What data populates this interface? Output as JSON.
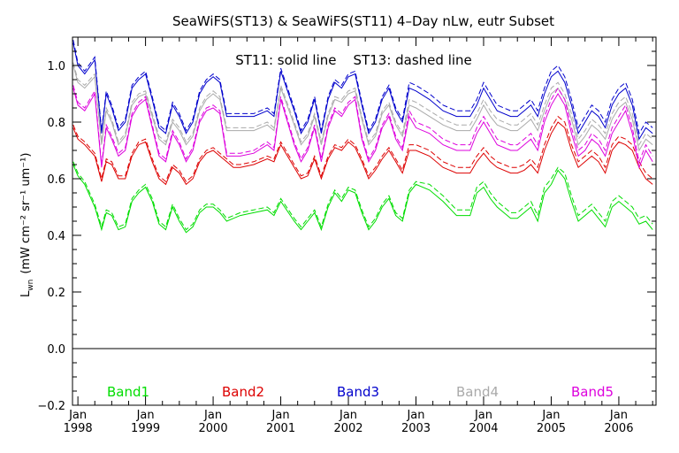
{
  "chart_data": {
    "type": "line",
    "title": "SeaWiFS(ST13) & SeaWiFS(ST11) 4–Day nLw, eutr Subset",
    "annotation": "ST11: solid line    ST13: dashed line",
    "ylabel_main": "L",
    "ylabel_sub": "wn",
    "ylabel_units": "(mW cm⁻² sr⁻¹ um⁻¹)",
    "ylim": [
      -0.2,
      1.1
    ],
    "xlim": [
      1997.92,
      2006.55
    ],
    "y_ticks": [
      {
        "v": -0.2,
        "label": "−0.2"
      },
      {
        "v": 0.0,
        "label": "0.0"
      },
      {
        "v": 0.2,
        "label": "0.2"
      },
      {
        "v": 0.4,
        "label": "0.4"
      },
      {
        "v": 0.6,
        "label": "0.6"
      },
      {
        "v": 0.8,
        "label": "0.8"
      },
      {
        "v": 1.0,
        "label": "1.0"
      }
    ],
    "x_ticks": [
      {
        "v": 1998,
        "month": "Jan",
        "year": "1998"
      },
      {
        "v": 1999,
        "month": "Jan",
        "year": "1999"
      },
      {
        "v": 2000,
        "month": "Jan",
        "year": "2000"
      },
      {
        "v": 2001,
        "month": "Jan",
        "year": "2001"
      },
      {
        "v": 2002,
        "month": "Jan",
        "year": "2002"
      },
      {
        "v": 2003,
        "month": "Jan",
        "year": "2003"
      },
      {
        "v": 2004,
        "month": "Jan",
        "year": "2004"
      },
      {
        "v": 2005,
        "month": "Jan",
        "year": "2005"
      },
      {
        "v": 2006,
        "month": "Jan",
        "year": "2006"
      }
    ],
    "zero_line": 0.0,
    "x": [
      1997.93,
      1998.0,
      1998.1,
      1998.25,
      1998.35,
      1998.42,
      1998.5,
      1998.6,
      1998.7,
      1998.8,
      1998.9,
      1999.0,
      1999.1,
      1999.2,
      1999.3,
      1999.4,
      1999.5,
      1999.6,
      1999.7,
      1999.8,
      1999.9,
      2000.0,
      2000.1,
      2000.2,
      2000.3,
      2000.4,
      2000.6,
      2000.8,
      2000.9,
      2001.0,
      2001.2,
      2001.3,
      2001.4,
      2001.5,
      2001.6,
      2001.7,
      2001.8,
      2001.9,
      2002.0,
      2002.1,
      2002.2,
      2002.3,
      2002.4,
      2002.5,
      2002.6,
      2002.7,
      2002.8,
      2002.9,
      2003.0,
      2003.2,
      2003.4,
      2003.6,
      2003.8,
      2003.9,
      2004.0,
      2004.1,
      2004.2,
      2004.4,
      2004.5,
      2004.6,
      2004.7,
      2004.8,
      2004.9,
      2005.0,
      2005.1,
      2005.2,
      2005.3,
      2005.4,
      2005.5,
      2005.6,
      2005.7,
      2005.8,
      2005.9,
      2006.0,
      2006.1,
      2006.2,
      2006.3,
      2006.4,
      2006.5
    ],
    "series": [
      {
        "name": "Band1",
        "color": "#00dd00",
        "values": [
          0.65,
          0.61,
          0.58,
          0.5,
          0.42,
          0.48,
          0.47,
          0.42,
          0.43,
          0.52,
          0.55,
          0.57,
          0.52,
          0.44,
          0.42,
          0.5,
          0.45,
          0.41,
          0.43,
          0.48,
          0.5,
          0.5,
          0.48,
          0.45,
          0.46,
          0.47,
          0.48,
          0.49,
          0.47,
          0.52,
          0.45,
          0.42,
          0.45,
          0.48,
          0.42,
          0.5,
          0.55,
          0.52,
          0.56,
          0.55,
          0.48,
          0.42,
          0.45,
          0.5,
          0.53,
          0.47,
          0.45,
          0.55,
          0.58,
          0.56,
          0.52,
          0.47,
          0.47,
          0.55,
          0.57,
          0.53,
          0.5,
          0.46,
          0.46,
          0.48,
          0.5,
          0.45,
          0.55,
          0.58,
          0.63,
          0.6,
          0.52,
          0.45,
          0.47,
          0.49,
          0.46,
          0.43,
          0.5,
          0.52,
          0.5,
          0.48,
          0.44,
          0.45,
          0.42
        ],
        "values_ST13": [
          0.66,
          0.62,
          0.59,
          0.51,
          0.43,
          0.49,
          0.48,
          0.43,
          0.44,
          0.53,
          0.56,
          0.58,
          0.53,
          0.45,
          0.43,
          0.51,
          0.46,
          0.42,
          0.44,
          0.49,
          0.51,
          0.51,
          0.49,
          0.46,
          0.47,
          0.48,
          0.49,
          0.5,
          0.48,
          0.53,
          0.46,
          0.43,
          0.46,
          0.49,
          0.43,
          0.51,
          0.56,
          0.53,
          0.57,
          0.56,
          0.49,
          0.43,
          0.46,
          0.51,
          0.54,
          0.48,
          0.46,
          0.56,
          0.59,
          0.58,
          0.54,
          0.49,
          0.49,
          0.57,
          0.59,
          0.55,
          0.52,
          0.48,
          0.48,
          0.5,
          0.52,
          0.47,
          0.57,
          0.6,
          0.64,
          0.62,
          0.54,
          0.47,
          0.49,
          0.51,
          0.48,
          0.45,
          0.52,
          0.54,
          0.52,
          0.5,
          0.46,
          0.47,
          0.44
        ]
      },
      {
        "name": "Band2",
        "color": "#dd0000",
        "values": [
          0.78,
          0.74,
          0.72,
          0.68,
          0.59,
          0.66,
          0.65,
          0.6,
          0.6,
          0.68,
          0.72,
          0.73,
          0.66,
          0.6,
          0.58,
          0.64,
          0.62,
          0.58,
          0.6,
          0.66,
          0.69,
          0.7,
          0.68,
          0.66,
          0.64,
          0.64,
          0.65,
          0.67,
          0.66,
          0.72,
          0.64,
          0.6,
          0.61,
          0.67,
          0.6,
          0.67,
          0.71,
          0.7,
          0.73,
          0.71,
          0.66,
          0.6,
          0.63,
          0.67,
          0.7,
          0.66,
          0.62,
          0.7,
          0.7,
          0.68,
          0.64,
          0.62,
          0.62,
          0.66,
          0.69,
          0.66,
          0.64,
          0.62,
          0.62,
          0.63,
          0.65,
          0.62,
          0.7,
          0.76,
          0.8,
          0.78,
          0.7,
          0.64,
          0.66,
          0.68,
          0.66,
          0.62,
          0.7,
          0.73,
          0.72,
          0.7,
          0.64,
          0.6,
          0.58
        ],
        "values_ST13": [
          0.79,
          0.75,
          0.73,
          0.69,
          0.6,
          0.67,
          0.66,
          0.61,
          0.61,
          0.69,
          0.73,
          0.74,
          0.67,
          0.61,
          0.59,
          0.65,
          0.63,
          0.59,
          0.61,
          0.67,
          0.7,
          0.71,
          0.69,
          0.67,
          0.65,
          0.65,
          0.66,
          0.68,
          0.67,
          0.73,
          0.65,
          0.61,
          0.62,
          0.68,
          0.61,
          0.68,
          0.72,
          0.71,
          0.74,
          0.72,
          0.67,
          0.61,
          0.64,
          0.68,
          0.71,
          0.67,
          0.63,
          0.72,
          0.72,
          0.7,
          0.66,
          0.64,
          0.64,
          0.68,
          0.71,
          0.68,
          0.66,
          0.64,
          0.64,
          0.65,
          0.67,
          0.64,
          0.72,
          0.78,
          0.82,
          0.8,
          0.72,
          0.66,
          0.68,
          0.7,
          0.68,
          0.64,
          0.72,
          0.75,
          0.74,
          0.72,
          0.66,
          0.62,
          0.6
        ]
      },
      {
        "name": "Band3",
        "color": "#0000cc",
        "values": [
          1.08,
          1.0,
          0.97,
          1.02,
          0.76,
          0.9,
          0.85,
          0.77,
          0.8,
          0.92,
          0.95,
          0.97,
          0.88,
          0.78,
          0.76,
          0.86,
          0.82,
          0.76,
          0.8,
          0.9,
          0.94,
          0.96,
          0.94,
          0.82,
          0.82,
          0.82,
          0.82,
          0.84,
          0.82,
          0.98,
          0.84,
          0.76,
          0.8,
          0.88,
          0.76,
          0.88,
          0.94,
          0.92,
          0.96,
          0.97,
          0.86,
          0.76,
          0.8,
          0.88,
          0.92,
          0.84,
          0.8,
          0.92,
          0.91,
          0.88,
          0.84,
          0.82,
          0.82,
          0.86,
          0.92,
          0.88,
          0.84,
          0.82,
          0.82,
          0.84,
          0.86,
          0.82,
          0.9,
          0.96,
          0.98,
          0.94,
          0.86,
          0.76,
          0.8,
          0.84,
          0.82,
          0.78,
          0.86,
          0.9,
          0.92,
          0.86,
          0.74,
          0.78,
          0.76
        ],
        "values_ST13": [
          1.09,
          1.01,
          0.98,
          1.03,
          0.77,
          0.91,
          0.86,
          0.78,
          0.81,
          0.93,
          0.96,
          0.98,
          0.89,
          0.79,
          0.77,
          0.87,
          0.83,
          0.77,
          0.81,
          0.91,
          0.95,
          0.97,
          0.95,
          0.83,
          0.83,
          0.83,
          0.83,
          0.85,
          0.83,
          0.99,
          0.85,
          0.77,
          0.81,
          0.89,
          0.77,
          0.89,
          0.95,
          0.93,
          0.97,
          0.98,
          0.87,
          0.77,
          0.81,
          0.89,
          0.93,
          0.85,
          0.81,
          0.94,
          0.93,
          0.9,
          0.86,
          0.84,
          0.84,
          0.88,
          0.94,
          0.9,
          0.86,
          0.84,
          0.84,
          0.86,
          0.88,
          0.84,
          0.92,
          0.98,
          1.0,
          0.96,
          0.88,
          0.78,
          0.82,
          0.86,
          0.84,
          0.8,
          0.88,
          0.92,
          0.94,
          0.88,
          0.76,
          0.8,
          0.78
        ]
      },
      {
        "name": "Band4",
        "color": "#aaaaaa",
        "values": [
          1.0,
          0.94,
          0.92,
          0.96,
          0.72,
          0.84,
          0.8,
          0.72,
          0.75,
          0.86,
          0.89,
          0.9,
          0.82,
          0.74,
          0.72,
          0.8,
          0.77,
          0.72,
          0.75,
          0.84,
          0.88,
          0.9,
          0.88,
          0.77,
          0.77,
          0.77,
          0.77,
          0.79,
          0.77,
          0.92,
          0.79,
          0.72,
          0.75,
          0.82,
          0.72,
          0.82,
          0.88,
          0.87,
          0.9,
          0.91,
          0.81,
          0.72,
          0.75,
          0.83,
          0.86,
          0.79,
          0.75,
          0.86,
          0.85,
          0.82,
          0.79,
          0.77,
          0.77,
          0.81,
          0.86,
          0.82,
          0.79,
          0.77,
          0.77,
          0.79,
          0.81,
          0.77,
          0.84,
          0.9,
          0.92,
          0.88,
          0.81,
          0.72,
          0.75,
          0.79,
          0.77,
          0.74,
          0.81,
          0.85,
          0.87,
          0.81,
          0.7,
          0.74,
          0.72
        ],
        "values_ST13": [
          1.01,
          0.95,
          0.93,
          0.97,
          0.73,
          0.85,
          0.81,
          0.73,
          0.76,
          0.87,
          0.9,
          0.91,
          0.83,
          0.75,
          0.73,
          0.81,
          0.78,
          0.73,
          0.76,
          0.85,
          0.89,
          0.91,
          0.89,
          0.78,
          0.78,
          0.78,
          0.78,
          0.8,
          0.78,
          0.93,
          0.8,
          0.73,
          0.76,
          0.83,
          0.73,
          0.83,
          0.89,
          0.88,
          0.91,
          0.92,
          0.82,
          0.73,
          0.76,
          0.84,
          0.87,
          0.8,
          0.76,
          0.88,
          0.87,
          0.84,
          0.81,
          0.79,
          0.79,
          0.83,
          0.88,
          0.84,
          0.81,
          0.79,
          0.79,
          0.81,
          0.83,
          0.79,
          0.86,
          0.92,
          0.94,
          0.9,
          0.83,
          0.74,
          0.77,
          0.81,
          0.79,
          0.76,
          0.83,
          0.87,
          0.89,
          0.83,
          0.72,
          0.76,
          0.74
        ]
      },
      {
        "name": "Band5",
        "color": "#dd00dd",
        "values": [
          0.92,
          0.86,
          0.84,
          0.9,
          0.64,
          0.78,
          0.74,
          0.68,
          0.7,
          0.82,
          0.86,
          0.88,
          0.78,
          0.68,
          0.66,
          0.76,
          0.72,
          0.66,
          0.7,
          0.8,
          0.84,
          0.85,
          0.83,
          0.68,
          0.68,
          0.68,
          0.69,
          0.72,
          0.7,
          0.88,
          0.72,
          0.66,
          0.7,
          0.78,
          0.66,
          0.78,
          0.84,
          0.82,
          0.86,
          0.88,
          0.74,
          0.66,
          0.7,
          0.78,
          0.82,
          0.74,
          0.7,
          0.82,
          0.78,
          0.76,
          0.72,
          0.7,
          0.7,
          0.76,
          0.8,
          0.76,
          0.72,
          0.7,
          0.7,
          0.72,
          0.74,
          0.7,
          0.8,
          0.86,
          0.9,
          0.86,
          0.76,
          0.68,
          0.7,
          0.74,
          0.72,
          0.68,
          0.76,
          0.8,
          0.84,
          0.76,
          0.64,
          0.7,
          0.66
        ],
        "values_ST13": [
          0.93,
          0.87,
          0.85,
          0.91,
          0.65,
          0.79,
          0.75,
          0.69,
          0.71,
          0.83,
          0.87,
          0.89,
          0.79,
          0.69,
          0.67,
          0.77,
          0.73,
          0.67,
          0.71,
          0.81,
          0.85,
          0.86,
          0.84,
          0.69,
          0.69,
          0.69,
          0.7,
          0.73,
          0.71,
          0.89,
          0.73,
          0.67,
          0.71,
          0.79,
          0.67,
          0.79,
          0.85,
          0.83,
          0.87,
          0.89,
          0.75,
          0.67,
          0.71,
          0.79,
          0.83,
          0.75,
          0.71,
          0.84,
          0.8,
          0.78,
          0.74,
          0.72,
          0.72,
          0.78,
          0.82,
          0.78,
          0.74,
          0.72,
          0.72,
          0.74,
          0.76,
          0.72,
          0.82,
          0.88,
          0.92,
          0.88,
          0.78,
          0.7,
          0.72,
          0.76,
          0.74,
          0.7,
          0.78,
          0.82,
          0.86,
          0.78,
          0.66,
          0.72,
          0.68
        ]
      }
    ],
    "legend": [
      {
        "label": "Band1",
        "color": "#00dd00"
      },
      {
        "label": "Band2",
        "color": "#dd0000"
      },
      {
        "label": "Band3",
        "color": "#0000cc"
      },
      {
        "label": "Band4",
        "color": "#aaaaaa"
      },
      {
        "label": "Band5",
        "color": "#dd00dd"
      }
    ],
    "legend_position": "bottom-inside",
    "grid": false
  }
}
